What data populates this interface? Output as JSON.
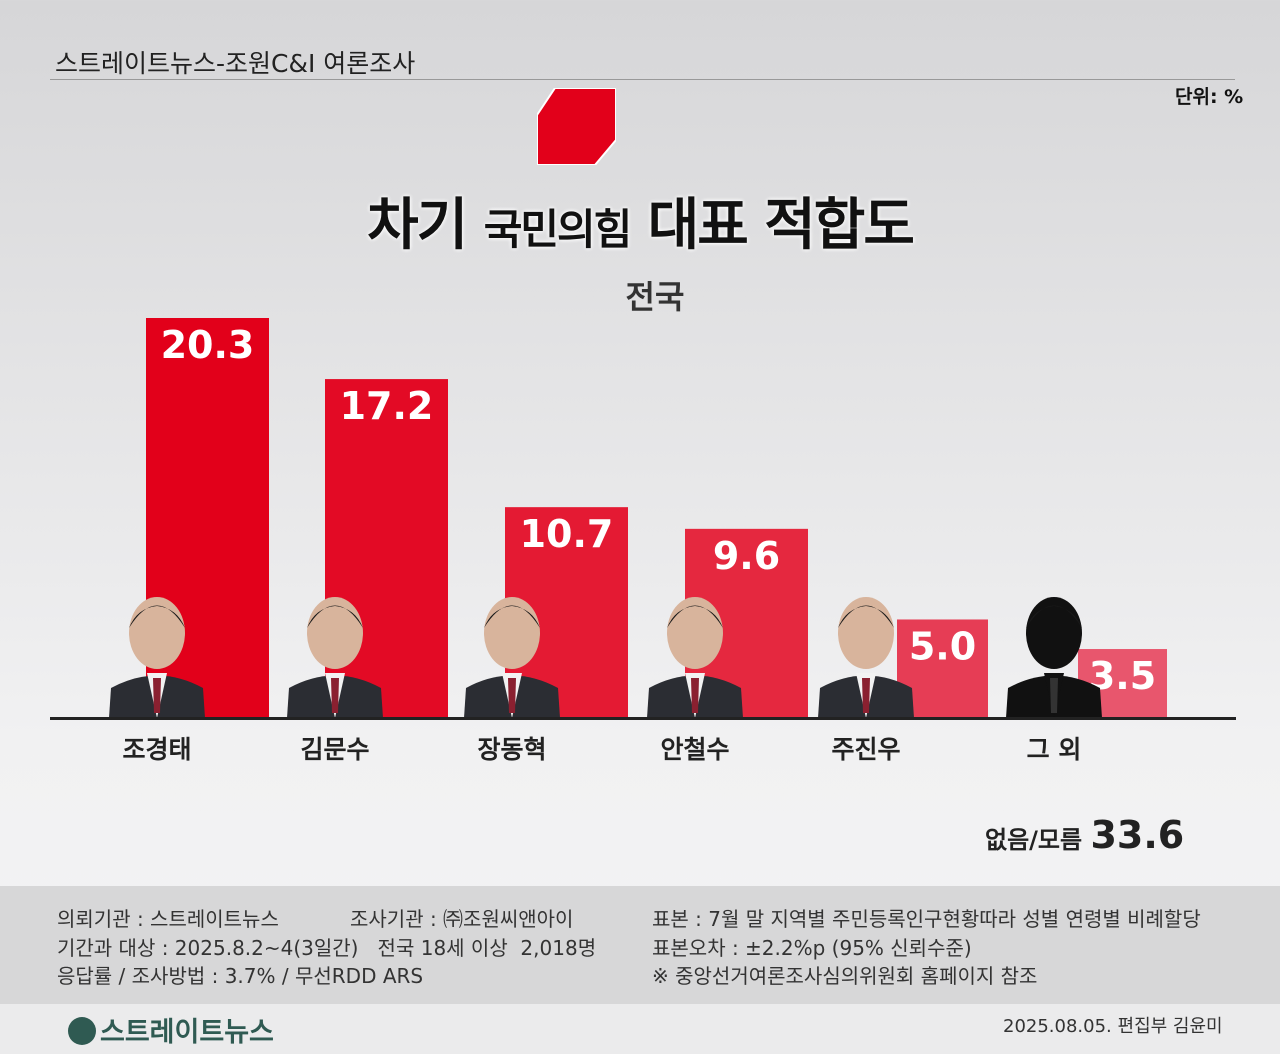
{
  "header": {
    "source": "스트레이트뉴스-조원C&I 여론조사",
    "unit": "단위: %",
    "title_pre": "차기 ",
    "title_party": "국민의힘",
    "title_post": " 대표 적합도",
    "subtitle": "전국"
  },
  "colors": {
    "bar_dark": "#e2001a",
    "bar_light": "#e8566d",
    "logo": "#e2001a",
    "brand": "#2f5a52"
  },
  "chart_data": {
    "type": "bar",
    "categories": [
      "조경태",
      "김문수",
      "장동혁",
      "안철수",
      "주진우",
      "그 외"
    ],
    "values": [
      20.3,
      17.2,
      10.7,
      9.6,
      5.0,
      3.5
    ],
    "value_labels": [
      "20.3",
      "17.2",
      "10.7",
      "9.6",
      "5.0",
      "3.5"
    ],
    "ylim": [
      0,
      21
    ],
    "grid": false,
    "unit": "%"
  },
  "none": {
    "label": "없음/모름",
    "value": "33.6"
  },
  "footer": {
    "left": [
      "의뢰기관 : 스트레이트뉴스",
      "기간과 대상 : 2025.8.2~4(3일간)   전국 18세 이상  2,018명",
      "응답률 / 조사방법 : 3.7% / 무선RDD ARS"
    ],
    "mid": "조사기관 : ㈜조원씨앤아이",
    "right": [
      "표본 : 7월 말 지역별 주민등록인구현황따라 성별 연령별 비례할당",
      "표본오차 : ±2.2%p (95% 신뢰수준)",
      "※ 중앙선거여론조사심의위원회 홈페이지 참조"
    ],
    "brand": "스트레이트뉴스",
    "date": "2025.08.05. 편집부 김윤미"
  }
}
